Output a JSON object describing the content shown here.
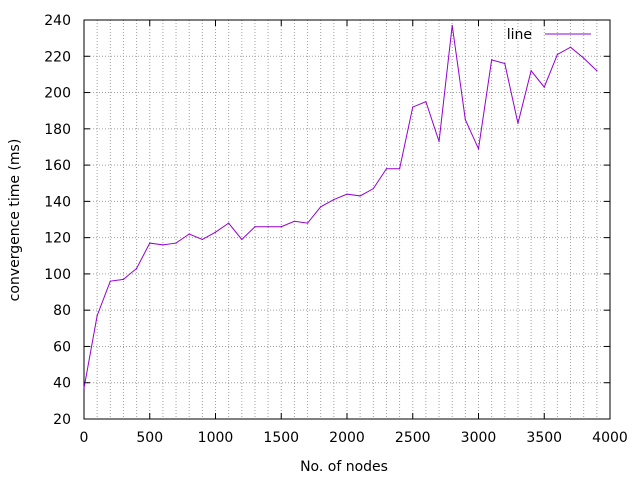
{
  "chart_data": {
    "type": "line",
    "xlabel": "No. of nodes",
    "ylabel": "convergence time (ms)",
    "xlim": [
      0,
      4000
    ],
    "ylim": [
      20,
      240
    ],
    "x_ticks": [
      0,
      500,
      1000,
      1500,
      2000,
      2500,
      3000,
      3500,
      4000
    ],
    "y_ticks": [
      20,
      40,
      60,
      80,
      100,
      120,
      140,
      160,
      180,
      200,
      220,
      240
    ],
    "x_minor_step": 100,
    "grid": true,
    "grid_style": "dotted",
    "legend_position": "top-right",
    "series": [
      {
        "name": "line",
        "color": "#9400d3",
        "x": [
          0,
          100,
          200,
          300,
          400,
          500,
          600,
          700,
          800,
          900,
          1000,
          1100,
          1200,
          1300,
          1400,
          1500,
          1600,
          1700,
          1800,
          1900,
          2000,
          2100,
          2200,
          2300,
          2400,
          2500,
          2600,
          2700,
          2800,
          2900,
          3000,
          3100,
          3200,
          3300,
          3400,
          3500,
          3600,
          3700,
          3800,
          3900
        ],
        "y": [
          37,
          77,
          96,
          97,
          103,
          117,
          116,
          117,
          122,
          119,
          123,
          128,
          119,
          126,
          126,
          126,
          129,
          128,
          137,
          141,
          144,
          143,
          147,
          158,
          158,
          192,
          195,
          173,
          237,
          185,
          169,
          218,
          216,
          183,
          212,
          203,
          221,
          225,
          219,
          212
        ]
      }
    ]
  }
}
